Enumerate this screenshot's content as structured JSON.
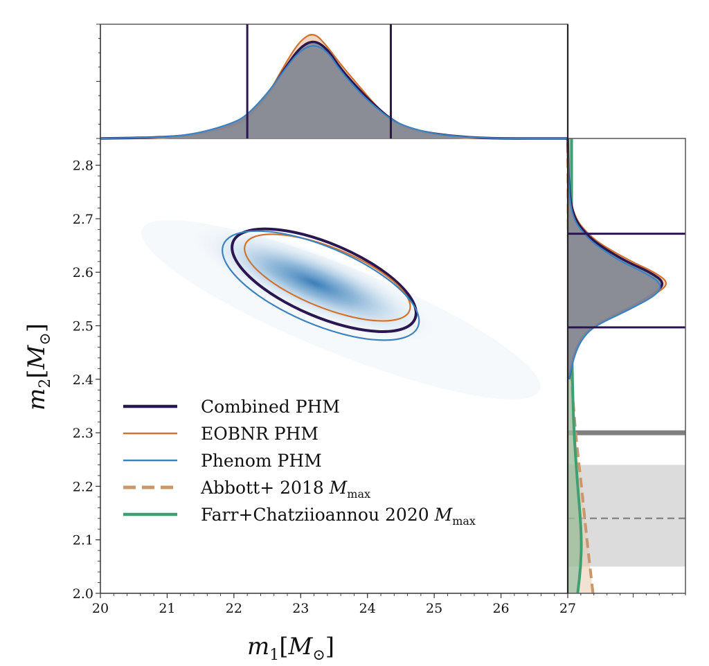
{
  "chart_data": {
    "type": "scatter",
    "subtype": "corner-plot (2D posterior density with marginal distributions)",
    "xlabel": "m_1[M_⊙]",
    "ylabel": "m_2[M_⊙]",
    "xlim": [
      20,
      27
    ],
    "ylim": [
      2.0,
      2.85
    ],
    "x_ticks": [
      "20",
      "21",
      "22",
      "23",
      "24",
      "25",
      "26",
      "27"
    ],
    "y_ticks": [
      "2.0",
      "2.1",
      "2.2",
      "2.3",
      "2.4",
      "2.5",
      "2.6",
      "2.7",
      "2.8"
    ],
    "grid": false,
    "legend_position": "lower-left",
    "legend": [
      {
        "label": "Combined PHM",
        "color": "#2a1650",
        "style": "solid-thick"
      },
      {
        "label": "EOBNR PHM",
        "color": "#d2722e",
        "style": "solid"
      },
      {
        "label": "Phenom PHM",
        "color": "#3a83c0",
        "style": "solid"
      },
      {
        "label": "Abbott+ 2018 ",
        "label_math": "M",
        "label_sub": "max",
        "color": "#c8976a",
        "style": "dashed"
      },
      {
        "label": "Farr+Chatziioannou 2020 ",
        "label_math": "M",
        "label_sub": "max",
        "color": "#3f9e72",
        "style": "solid-thick"
      }
    ],
    "density_peak": {
      "m1": 23.2,
      "m2": 2.58,
      "color": "#2f77b4"
    },
    "contours_90": [
      {
        "name": "Combined PHM",
        "center": [
          23.35,
          2.585
        ],
        "semi_axes": [
          1.45,
          0.055
        ],
        "angle_deg": -31,
        "color": "#2a1650"
      },
      {
        "name": "EOBNR PHM",
        "center": [
          23.4,
          2.59
        ],
        "semi_axes": [
          1.3,
          0.045
        ],
        "angle_deg": -30,
        "color": "#d2722e"
      },
      {
        "name": "Phenom PHM",
        "center": [
          23.3,
          2.575
        ],
        "semi_axes": [
          1.55,
          0.058
        ],
        "angle_deg": -31,
        "color": "#3a83c0"
      }
    ],
    "m1_marginal": {
      "credible_interval": [
        22.2,
        24.35
      ],
      "series": [
        {
          "name": "Combined PHM",
          "x": [
            20.0,
            21.0,
            21.5,
            22.0,
            22.2,
            22.5,
            22.8,
            23.0,
            23.2,
            23.4,
            23.6,
            23.9,
            24.1,
            24.35,
            24.6,
            25.0,
            25.5,
            26.0,
            27.0
          ],
          "density": [
            0.0,
            0.01,
            0.04,
            0.12,
            0.18,
            0.38,
            0.66,
            0.82,
            0.88,
            0.8,
            0.62,
            0.42,
            0.3,
            0.17,
            0.09,
            0.04,
            0.01,
            0.0,
            0.0
          ]
        },
        {
          "name": "EOBNR PHM",
          "x": [
            20.0,
            21.0,
            21.5,
            22.0,
            22.2,
            22.5,
            22.8,
            23.0,
            23.2,
            23.4,
            23.6,
            23.9,
            24.1,
            24.35,
            24.6,
            25.0,
            25.5,
            26.0,
            27.0
          ],
          "density": [
            0.0,
            0.0,
            0.03,
            0.1,
            0.16,
            0.38,
            0.7,
            0.88,
            0.95,
            0.82,
            0.66,
            0.45,
            0.31,
            0.16,
            0.07,
            0.02,
            0.0,
            0.0,
            0.0
          ]
        },
        {
          "name": "Phenom PHM",
          "x": [
            20.0,
            21.0,
            21.5,
            22.0,
            22.2,
            22.5,
            22.8,
            23.0,
            23.2,
            23.4,
            23.6,
            23.9,
            24.1,
            24.35,
            24.6,
            25.0,
            25.5,
            26.0,
            27.0
          ],
          "density": [
            0.0,
            0.01,
            0.05,
            0.14,
            0.21,
            0.4,
            0.65,
            0.79,
            0.84,
            0.78,
            0.6,
            0.4,
            0.29,
            0.17,
            0.1,
            0.04,
            0.01,
            0.0,
            0.0
          ]
        }
      ]
    },
    "m2_marginal": {
      "credible_interval": [
        2.497,
        2.672
      ],
      "series": [
        {
          "name": "Combined PHM",
          "m2": [
            2.4,
            2.45,
            2.48,
            2.5,
            2.53,
            2.56,
            2.58,
            2.6,
            2.62,
            2.65,
            2.67,
            2.7,
            2.75,
            2.85
          ],
          "density": [
            0.01,
            0.06,
            0.14,
            0.25,
            0.55,
            0.82,
            0.92,
            0.78,
            0.55,
            0.3,
            0.18,
            0.06,
            0.01,
            0.0
          ]
        },
        {
          "name": "EOBNR PHM",
          "m2": [
            2.4,
            2.45,
            2.48,
            2.5,
            2.53,
            2.56,
            2.58,
            2.6,
            2.62,
            2.65,
            2.67,
            2.7,
            2.75,
            2.85
          ],
          "density": [
            0.01,
            0.05,
            0.12,
            0.22,
            0.52,
            0.84,
            0.96,
            0.82,
            0.6,
            0.33,
            0.2,
            0.07,
            0.01,
            0.0
          ]
        },
        {
          "name": "Phenom PHM",
          "m2": [
            2.4,
            2.45,
            2.48,
            2.5,
            2.53,
            2.56,
            2.58,
            2.6,
            2.62,
            2.65,
            2.67,
            2.7,
            2.75,
            2.85
          ],
          "density": [
            0.01,
            0.07,
            0.15,
            0.26,
            0.58,
            0.86,
            0.88,
            0.72,
            0.5,
            0.27,
            0.16,
            0.05,
            0.01,
            0.0
          ]
        }
      ],
      "mmax_abbott2018": {
        "m2": [
          2.0,
          2.1,
          2.2,
          2.3,
          2.4,
          2.5,
          2.6,
          2.85
        ],
        "density": [
          0.33,
          0.25,
          0.18,
          0.1,
          0.05,
          0.02,
          0.01,
          0.0
        ]
      },
      "mmax_farr2020": {
        "m2": [
          2.0,
          2.05,
          2.1,
          2.15,
          2.2,
          2.3,
          2.4,
          2.5,
          2.6,
          2.85
        ],
        "density": [
          0.13,
          0.17,
          0.18,
          0.16,
          0.13,
          0.08,
          0.06,
          0.05,
          0.05,
          0.05
        ]
      },
      "reference_line_solid": 2.3,
      "reference_band": [
        2.05,
        2.24
      ],
      "reference_line_dashed": 2.14
    }
  }
}
